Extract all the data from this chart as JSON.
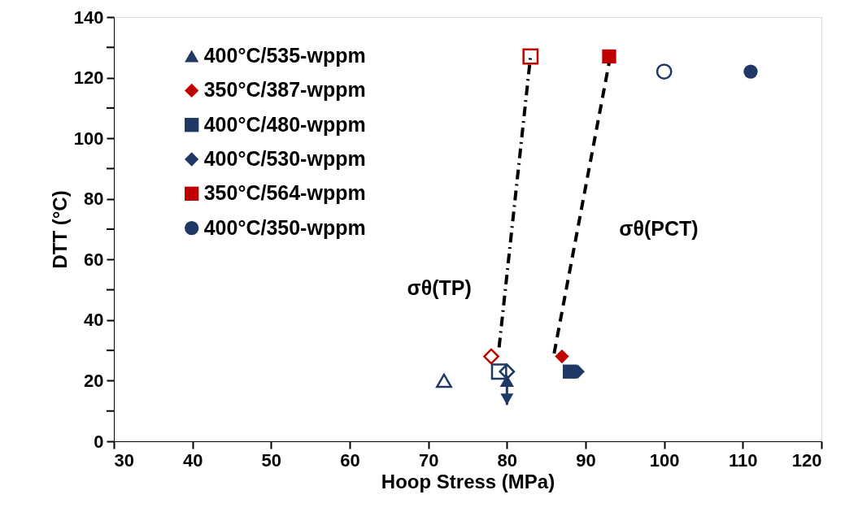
{
  "chart_data": {
    "type": "scatter",
    "xlabel": "Hoop Stress (MPa)",
    "ylabel": "DTT (°C)",
    "xlim": [
      30,
      120
    ],
    "xticks": [
      30,
      40,
      50,
      60,
      70,
      80,
      90,
      100,
      110,
      120
    ],
    "ylim": [
      0,
      140
    ],
    "yticks": [
      0,
      {
        "value": 10,
        "label": null
      },
      20,
      {
        "value": 30,
        "label": null
      },
      40,
      {
        "value": 50,
        "label": null
      },
      60,
      {
        "value": 70,
        "label": null
      },
      80,
      {
        "value": 90,
        "label": null
      },
      100,
      {
        "value": 110,
        "label": null
      },
      120,
      {
        "value": 130,
        "label": null
      },
      140
    ],
    "grid": false,
    "legend": "top left",
    "series": [
      {
        "name": "400°C/535-wppm",
        "color": "#1f3864",
        "marker": "triangle",
        "x": [
          80
        ],
        "values": [
          20
        ],
        "errors": [
          [
            12,
            20
          ]
        ]
      },
      {
        "name": "350°C/387-wppm",
        "color": "#c00000",
        "marker": "diamond",
        "x": [
          87
        ],
        "values": [
          28
        ]
      },
      {
        "name": "400°C/480-wppm",
        "color": "#1f3864",
        "marker": "square",
        "x": [
          88
        ],
        "values": [
          23
        ]
      },
      {
        "name": "400°C/530-wppm",
        "color": "#1f3864",
        "marker": "diamond",
        "x": [
          89
        ],
        "values": [
          23
        ]
      },
      {
        "name": "350°C/564-wppm",
        "color": "#c00000",
        "marker": "square",
        "x": [
          93
        ],
        "values": [
          127
        ]
      },
      {
        "name": "400°C/350-wppm",
        "color": "#1f3864",
        "marker": "circle",
        "x": [
          111
        ],
        "values": [
          122
        ]
      },
      {
        "color": "#1f3864",
        "marker": "triangle",
        "x": [
          72
        ],
        "values": [
          20
        ]
      },
      {
        "color": "#c00000",
        "marker": "diamond",
        "x": [
          78
        ],
        "values": [
          28
        ]
      },
      {
        "color": "#1f3864",
        "marker": "square",
        "x": [
          79
        ],
        "values": [
          23
        ]
      },
      {
        "color": "#1f3864",
        "marker": "diamond",
        "x": [
          80
        ],
        "values": [
          23
        ]
      },
      {
        "color": "#c00000",
        "marker": "square",
        "x": [
          83
        ],
        "values": [
          127
        ]
      },
      {
        "color": "#1f3864",
        "marker": "circle",
        "x": [
          100
        ],
        "values": [
          122
        ]
      },
      {
        "type": "line",
        "color": "#000000",
        "line_style": "dotted",
        "marker": "none",
        "x": [
          79,
          83
        ],
        "values": [
          31,
          127
        ]
      },
      {
        "type": "line",
        "color": "#000000",
        "line_style": "dashed",
        "marker": "none",
        "x": [
          86,
          93
        ],
        "values": [
          29,
          125
        ]
      }
    ],
    "annotations": [
      "σθ(TP)",
      "σθ(PCT)"
    ]
  }
}
